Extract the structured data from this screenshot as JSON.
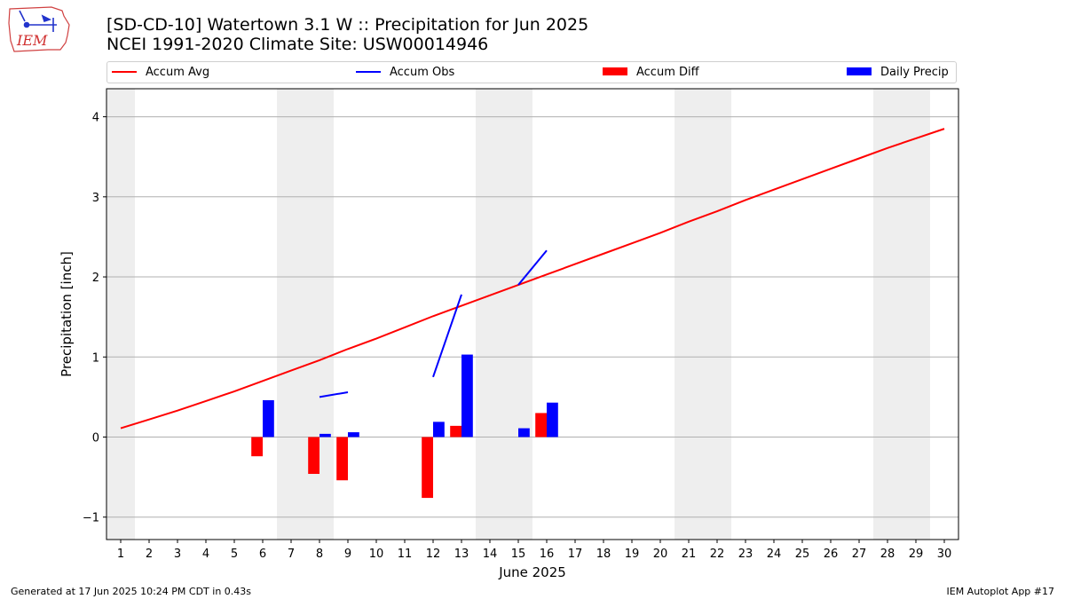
{
  "header": {
    "logo_text": "IEM",
    "title_line1": "[SD-CD-10] Watertown 3.1 W :: Precipitation for Jun 2025",
    "title_line2": "NCEI 1991-2020 Climate Site: USW00014946"
  },
  "footer": {
    "left": "Generated at 17 Jun 2025 10:24 PM CDT in 0.43s",
    "right": "IEM Autoplot App #17"
  },
  "legend": {
    "placement": "top, above plot",
    "items": [
      {
        "label": "Accum Avg",
        "kind": "line",
        "color": "#ff0000"
      },
      {
        "label": "Accum Obs",
        "kind": "line",
        "color": "#0000ff"
      },
      {
        "label": "Accum Diff",
        "kind": "box",
        "color": "#ff0000"
      },
      {
        "label": "Daily Precip",
        "kind": "box",
        "color": "#0000ff"
      }
    ]
  },
  "chart_data": {
    "type": "bar",
    "xlabel": "June 2025",
    "ylabel": "Precipitation [inch]",
    "xlim": [
      0.5,
      30.5
    ],
    "ylim": [
      -1.28,
      4.35
    ],
    "x_ticks": [
      1,
      2,
      3,
      4,
      5,
      6,
      7,
      8,
      9,
      10,
      11,
      12,
      13,
      14,
      15,
      16,
      17,
      18,
      19,
      20,
      21,
      22,
      23,
      24,
      25,
      26,
      27,
      28,
      29,
      30
    ],
    "y_ticks": [
      -1,
      0,
      1,
      2,
      3,
      4
    ],
    "grid": "horizontal",
    "weekend_shading": [
      [
        0.5,
        1.5
      ],
      [
        6.5,
        8.5
      ],
      [
        13.5,
        15.5
      ],
      [
        20.5,
        22.5
      ],
      [
        27.5,
        29.5
      ]
    ],
    "shade_color": "#eeeeee",
    "series": [
      {
        "name": "Accum Avg",
        "kind": "line",
        "color": "#ff0000",
        "x": [
          1,
          2,
          3,
          4,
          5,
          6,
          7,
          8,
          9,
          10,
          11,
          12,
          13,
          14,
          15,
          16,
          17,
          18,
          19,
          20,
          21,
          22,
          23,
          24,
          25,
          26,
          27,
          28,
          29,
          30
        ],
        "values": [
          0.11,
          0.22,
          0.33,
          0.45,
          0.57,
          0.7,
          0.83,
          0.96,
          1.1,
          1.23,
          1.37,
          1.51,
          1.64,
          1.77,
          1.9,
          2.03,
          2.16,
          2.29,
          2.42,
          2.55,
          2.69,
          2.82,
          2.96,
          3.09,
          3.22,
          3.35,
          3.48,
          3.61,
          3.73,
          3.85
        ]
      },
      {
        "name": "Accum Obs",
        "kind": "line",
        "color": "#0000ff",
        "segments": [
          {
            "x": [
              8,
              9
            ],
            "values": [
              0.5,
              0.56
            ]
          },
          {
            "x": [
              12,
              13
            ],
            "values": [
              0.75,
              1.78
            ]
          },
          {
            "x": [
              15,
              16
            ],
            "values": [
              1.9,
              2.33
            ]
          }
        ]
      },
      {
        "name": "Accum Diff",
        "kind": "bar",
        "color": "#ff0000",
        "x": [
          6,
          8,
          9,
          12,
          13,
          16
        ],
        "values": [
          -0.24,
          -0.46,
          -0.54,
          -0.76,
          0.14,
          0.3
        ]
      },
      {
        "name": "Daily Precip",
        "kind": "bar",
        "color": "#0000ff",
        "x": [
          6,
          8,
          9,
          12,
          13,
          15,
          16
        ],
        "values": [
          0.46,
          0.04,
          0.06,
          0.19,
          1.03,
          0.11,
          0.43
        ]
      }
    ]
  }
}
